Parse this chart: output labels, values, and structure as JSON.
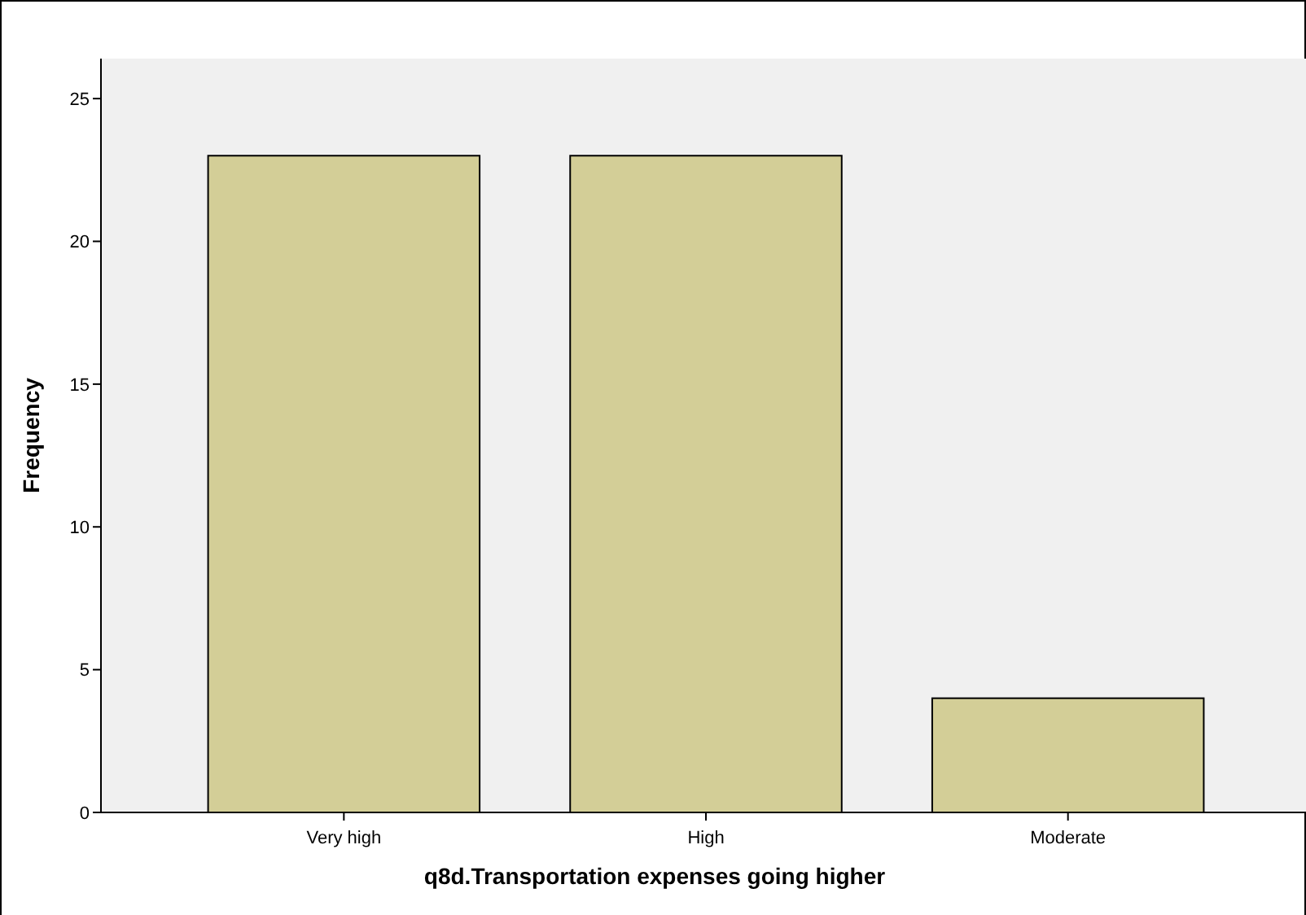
{
  "chart_data": {
    "type": "bar",
    "xlabel": "q8d.Transportation expenses going higher",
    "ylabel": "Frequency",
    "categories": [
      "Very high",
      "High",
      "Moderate"
    ],
    "values": [
      23,
      23,
      4
    ],
    "color": "#d3ce97",
    "ylim": [
      0,
      26.4
    ],
    "yticks": [
      0,
      5,
      10,
      15,
      20,
      25
    ],
    "grid": false
  }
}
